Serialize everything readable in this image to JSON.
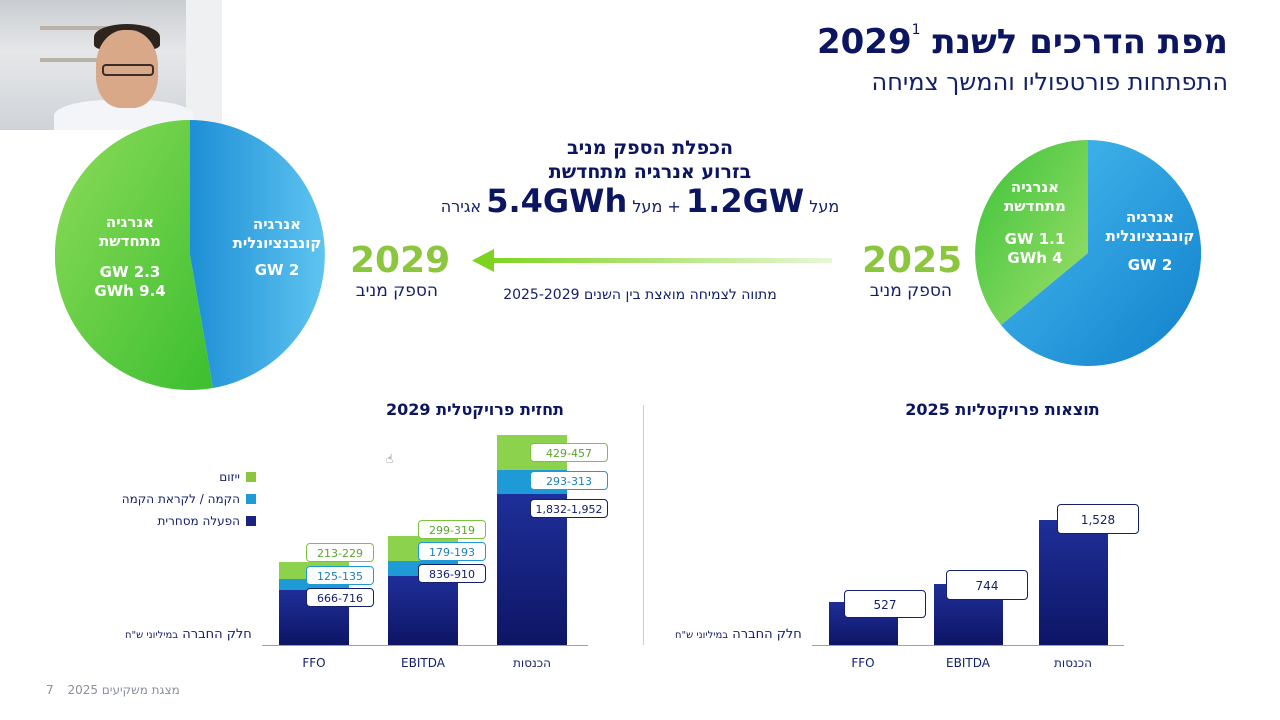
{
  "header": {
    "title": "מפת הדרכים לשנת 2029",
    "footnote_ref": "1",
    "subtitle": "התפתחות פורטפוליו והמשך צמיחה"
  },
  "center": {
    "heading_line1": "הכפלת הספק מניב",
    "heading_line2": "בזרוע אנרגיה מתחדשת",
    "prefix1": "מעל",
    "value1": "1.2GW",
    "plus": "+",
    "prefix2": "מעל",
    "value2": "5.4GWh",
    "suffix2": "אגירה",
    "trend_text": "מתווה לצמיחה מואצת בין השנים 2025-2029"
  },
  "years": {
    "left": {
      "year": "2029",
      "label": "הספק מניב"
    },
    "right": {
      "year": "2025",
      "label": "הספק מניב"
    }
  },
  "pie_2029": {
    "conventional_label": "אנרגיה קונבנציונלית",
    "conventional_value": "2 GW",
    "renewable_label": "אנרגיה מתחדשת",
    "renewable_value1": "2.3 GW",
    "renewable_value2": "9.4 GWh",
    "conventional_share": 0.47
  },
  "pie_2025": {
    "conventional_label": "אנרגיה קונבנציונלית",
    "conventional_value": "2 GW",
    "renewable_label": "אנרגיה מתחדשת",
    "renewable_value1": "1.1 GW",
    "renewable_value2": "4 GWh",
    "conventional_share": 0.64
  },
  "colors": {
    "navy": "#14206a",
    "blue": "#1e9bd7",
    "green": "#8cc63f"
  },
  "forecast_2029": {
    "title": "תחזית פרויקטלית 2029",
    "unit_main": "חלק החברה",
    "unit_small": "במיליוני ש\"ח",
    "legend": [
      {
        "label": "ייזום",
        "color": "#8cc63f"
      },
      {
        "label": "הקמה / לקראת הקמה",
        "color": "#1e9bd7"
      },
      {
        "label": "הפעלה מסחרית",
        "color": "#1a2480"
      }
    ],
    "categories": [
      "FFO",
      "EBITDA",
      "הכנסות"
    ],
    "labels": {
      "ffo": {
        "green": "213-229",
        "blue": "125-135",
        "navy": "666-716"
      },
      "ebitda": {
        "green": "299-319",
        "blue": "179-193",
        "navy": "836-910"
      },
      "revenue": {
        "green": "429-457",
        "blue": "293-313",
        "navy": "1,832-1,952"
      }
    }
  },
  "results_2025": {
    "title": "תוצאות פרויקטליות 2025",
    "unit_main": "חלק החברה",
    "unit_small": "במיליוני ש\"ח",
    "categories": [
      "FFO",
      "EBITDA",
      "הכנסות"
    ],
    "values": [
      "527",
      "744",
      "1,528"
    ]
  },
  "footer": {
    "page": "7",
    "text": "מצגת משקיעים 2025"
  }
}
